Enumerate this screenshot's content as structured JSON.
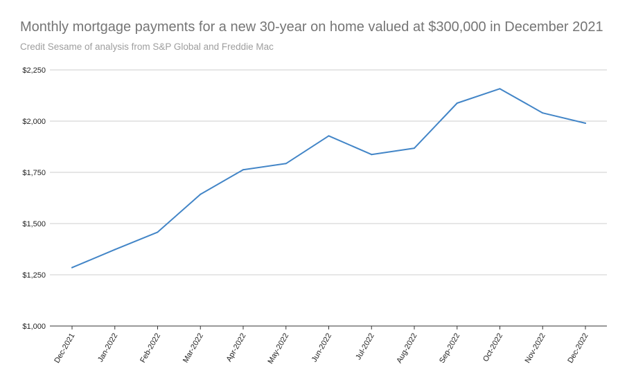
{
  "chart_data": {
    "type": "line",
    "title": "Monthly mortgage payments for a new 30-year on home valued at $300,000 in December 2021",
    "subtitle": "Credit Sesame of analysis from S&P Global and Freddie Mac",
    "xlabel": "",
    "ylabel": "",
    "categories": [
      "Dec-2021",
      "Jan-2022",
      "Feb-2022",
      "Mar-2022",
      "Apr-2022",
      "May-2022",
      "Jun-2022",
      "Jul-2022",
      "Aug-2022",
      "Sep-2022",
      "Oct-2022",
      "Nov-2022",
      "Dec-2022"
    ],
    "series": [
      {
        "values": [
          1285,
          1373,
          1458,
          1643,
          1763,
          1793,
          1928,
          1837,
          1868,
          2088,
          2158,
          2040,
          1990
        ],
        "color": "#4285c7"
      }
    ],
    "ylim": [
      1000,
      2250
    ],
    "yticks": [
      1000,
      1250,
      1500,
      1750,
      2000,
      2250
    ],
    "ytick_labels": [
      "$1,000",
      "$1,250",
      "$1,500",
      "$1,750",
      "$2,000",
      "$2,250"
    ],
    "grid": true,
    "legend": "none",
    "colors": {
      "gridline": "#cccccc",
      "axis": "#333333"
    }
  }
}
